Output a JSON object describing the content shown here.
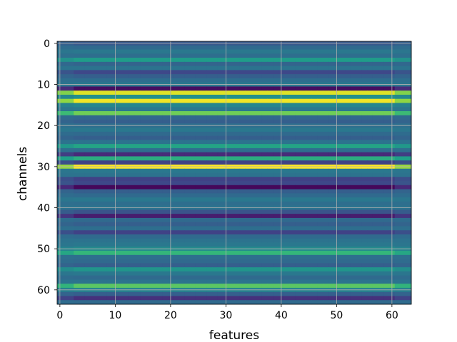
{
  "chart_data": {
    "type": "heatmap",
    "title": "",
    "xlabel": "features",
    "ylabel": "channels",
    "n_features": 64,
    "n_channels": 64,
    "xlim": [
      -0.5,
      63.5
    ],
    "ylim": [
      63.5,
      -0.5
    ],
    "y_inverted": true,
    "grid": true,
    "colormap": "viridis",
    "xticks": [
      0,
      10,
      20,
      30,
      40,
      50,
      60
    ],
    "yticks": [
      0,
      10,
      20,
      30,
      40,
      50,
      60
    ],
    "edge_columns": {
      "left_features": [
        0,
        1,
        2
      ],
      "right_features": [
        61,
        62,
        63
      ],
      "note_values_shift_slightly_toward_mid_at_edges": true
    },
    "channel_values": [
      0.28,
      0.34,
      0.4,
      0.36,
      0.55,
      0.32,
      0.38,
      0.22,
      0.3,
      0.36,
      0.4,
      0.04,
      0.95,
      0.5,
      0.98,
      0.46,
      0.4,
      0.78,
      0.33,
      0.3,
      0.36,
      0.4,
      0.34,
      0.3,
      0.38,
      0.58,
      0.36,
      0.12,
      0.62,
      0.2,
      1.0,
      0.4,
      0.38,
      0.2,
      0.22,
      0.02,
      0.3,
      0.34,
      0.4,
      0.36,
      0.38,
      0.26,
      0.08,
      0.34,
      0.3,
      0.36,
      0.2,
      0.34,
      0.38,
      0.4,
      0.48,
      0.66,
      0.36,
      0.34,
      0.3,
      0.52,
      0.4,
      0.34,
      0.38,
      0.74,
      0.46,
      0.3,
      0.14,
      0.34
    ]
  },
  "colors": {
    "viridis_stops": [
      "#440154",
      "#482878",
      "#3e4989",
      "#31688e",
      "#26828e",
      "#1f9e89",
      "#35b779",
      "#6ece58",
      "#b5de2b",
      "#fde725"
    ],
    "grid": "#b0b0b0",
    "frame": "#000000"
  }
}
